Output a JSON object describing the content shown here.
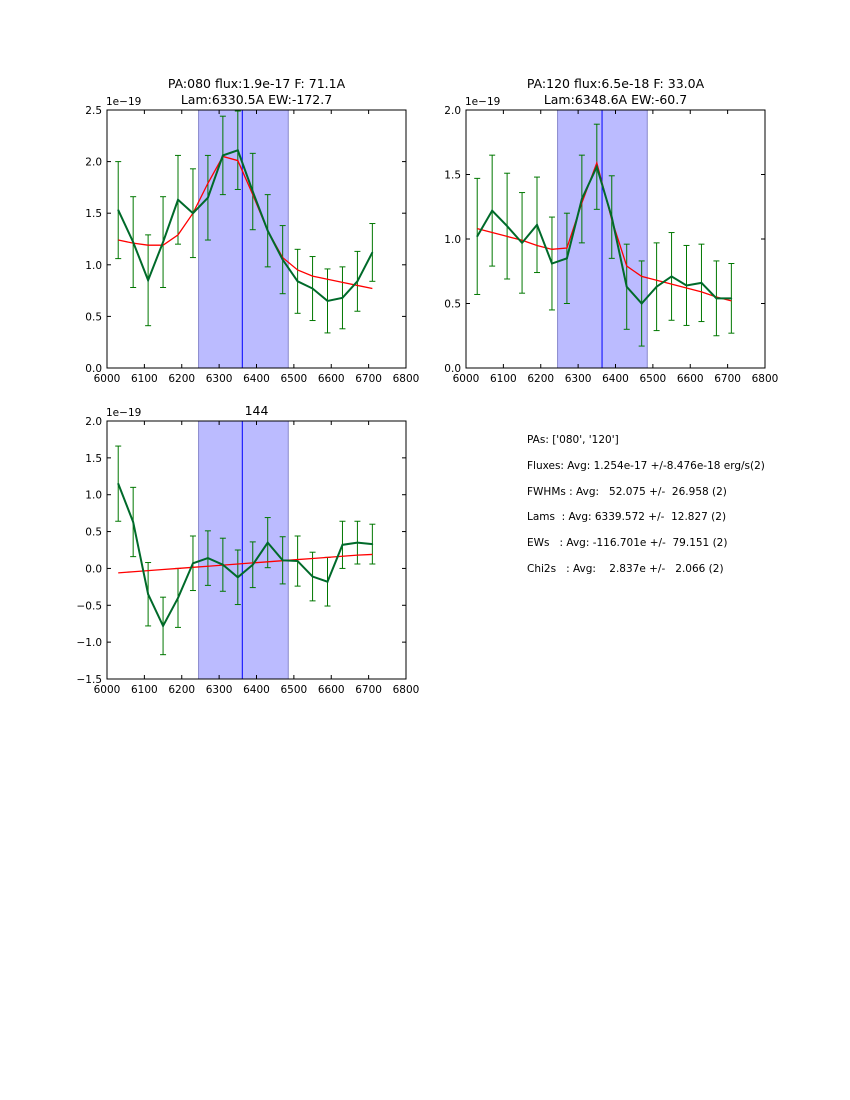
{
  "chart_data": [
    {
      "type": "line",
      "title_lines": [
        "PA:080 flux:1.9e-17 F: 71.1A",
        "Lam:6330.5A EW:-172.7"
      ],
      "xlabel": "",
      "ylabel": "",
      "xlim": [
        6000,
        6800
      ],
      "ylim": [
        0.0,
        2.5
      ],
      "offset_label": "1e−19",
      "xticks": [
        6000,
        6100,
        6200,
        6300,
        6400,
        6500,
        6600,
        6700,
        6800
      ],
      "yticks": [
        "0.0",
        "0.5",
        "1.0",
        "1.5",
        "2.0",
        "2.5"
      ],
      "span": [
        6245,
        6485
      ],
      "vline": 6362,
      "x": [
        6030,
        6070,
        6110,
        6150,
        6190,
        6230,
        6270,
        6310,
        6350,
        6390,
        6430,
        6470,
        6510,
        6550,
        6590,
        6630,
        6670,
        6710
      ],
      "series": [
        {
          "name": "data",
          "color": "#006a2a",
          "values": [
            1.53,
            1.22,
            0.85,
            1.22,
            1.63,
            1.5,
            1.65,
            2.06,
            2.11,
            1.71,
            1.33,
            1.05,
            0.84,
            0.77,
            0.65,
            0.68,
            0.84,
            1.12
          ],
          "errors": [
            0.47,
            0.44,
            0.44,
            0.44,
            0.43,
            0.43,
            0.41,
            0.38,
            0.38,
            0.37,
            0.35,
            0.33,
            0.31,
            0.31,
            0.31,
            0.3,
            0.29,
            0.28
          ]
        },
        {
          "name": "fit",
          "color": "#ff0000",
          "values": [
            1.24,
            1.21,
            1.19,
            1.19,
            1.29,
            1.5,
            1.79,
            2.05,
            2.01,
            1.68,
            1.33,
            1.07,
            0.95,
            0.89,
            0.86,
            0.83,
            0.8,
            0.77
          ]
        }
      ]
    },
    {
      "type": "line",
      "title_lines": [
        "PA:120 flux:6.5e-18 F: 33.0A",
        "Lam:6348.6A EW:-60.7"
      ],
      "xlabel": "",
      "ylabel": "",
      "xlim": [
        6000,
        6800
      ],
      "ylim": [
        0.0,
        2.0
      ],
      "offset_label": "1e−19",
      "xticks": [
        6000,
        6100,
        6200,
        6300,
        6400,
        6500,
        6600,
        6700,
        6800
      ],
      "yticks": [
        "0.0",
        "0.5",
        "1.0",
        "1.5",
        "2.0"
      ],
      "span": [
        6245,
        6485
      ],
      "vline": 6364,
      "x": [
        6030,
        6070,
        6110,
        6150,
        6190,
        6230,
        6270,
        6310,
        6350,
        6390,
        6430,
        6470,
        6510,
        6550,
        6590,
        6630,
        6670,
        6710
      ],
      "series": [
        {
          "name": "data",
          "color": "#006a2a",
          "values": [
            1.02,
            1.22,
            1.1,
            0.97,
            1.11,
            0.81,
            0.85,
            1.31,
            1.56,
            1.17,
            0.63,
            0.5,
            0.63,
            0.71,
            0.64,
            0.66,
            0.54,
            0.54
          ],
          "errors": [
            0.45,
            0.43,
            0.41,
            0.39,
            0.37,
            0.36,
            0.35,
            0.34,
            0.33,
            0.32,
            0.33,
            0.33,
            0.34,
            0.34,
            0.31,
            0.3,
            0.29,
            0.27
          ]
        },
        {
          "name": "fit",
          "color": "#ff0000",
          "values": [
            1.08,
            1.05,
            1.02,
            0.99,
            0.95,
            0.92,
            0.93,
            1.28,
            1.59,
            1.15,
            0.79,
            0.71,
            0.68,
            0.65,
            0.62,
            0.59,
            0.55,
            0.52
          ]
        }
      ]
    },
    {
      "type": "line",
      "title_lines": [
        "144"
      ],
      "xlabel": "",
      "ylabel": "",
      "xlim": [
        6000,
        6800
      ],
      "ylim": [
        -1.5,
        2.0
      ],
      "offset_label": "1e−19",
      "xticks": [
        6000,
        6100,
        6200,
        6300,
        6400,
        6500,
        6600,
        6700,
        6800
      ],
      "yticks": [
        "−1.5",
        "−1.0",
        "−0.5",
        "0.0",
        "0.5",
        "1.0",
        "1.5",
        "2.0"
      ],
      "span": [
        6245,
        6485
      ],
      "vline": 6362,
      "x": [
        6030,
        6070,
        6110,
        6150,
        6190,
        6230,
        6270,
        6310,
        6350,
        6390,
        6430,
        6470,
        6510,
        6550,
        6590,
        6630,
        6670,
        6710
      ],
      "series": [
        {
          "name": "data",
          "color": "#006a2a",
          "values": [
            1.15,
            0.63,
            -0.35,
            -0.78,
            -0.4,
            0.07,
            0.14,
            0.05,
            -0.12,
            0.05,
            0.35,
            0.11,
            0.1,
            -0.11,
            -0.18,
            0.32,
            0.35,
            0.33
          ],
          "errors": [
            0.51,
            0.47,
            0.43,
            0.39,
            0.4,
            0.37,
            0.37,
            0.36,
            0.37,
            0.31,
            0.34,
            0.32,
            0.34,
            0.33,
            0.33,
            0.32,
            0.29,
            0.27
          ]
        },
        {
          "name": "fit",
          "color": "#ff0000",
          "values": [
            -0.06,
            -0.045,
            -0.03,
            -0.015,
            0.0,
            0.015,
            0.03,
            0.045,
            0.06,
            0.075,
            0.09,
            0.105,
            0.12,
            0.135,
            0.15,
            0.165,
            0.18,
            0.19
          ]
        }
      ]
    }
  ],
  "colors": {
    "span_fill": "#bbbbff",
    "span_edge": "#8888cc",
    "vline": "#0000ff",
    "data": "#006a2a",
    "fit": "#ff0000"
  },
  "stats": {
    "lines": [
      "PAs: ['080', '120']",
      "Fluxes: Avg: 1.254e-17 +/-8.476e-18 erg/s(2)",
      "FWHMs : Avg:   52.075 +/-  26.958 (2)",
      "Lams  : Avg: 6339.572 +/-  12.827 (2)",
      "EWs   : Avg: -116.701e +/-  79.151 (2)",
      "Chi2s   : Avg:    2.837e +/-   2.066 (2)"
    ]
  }
}
